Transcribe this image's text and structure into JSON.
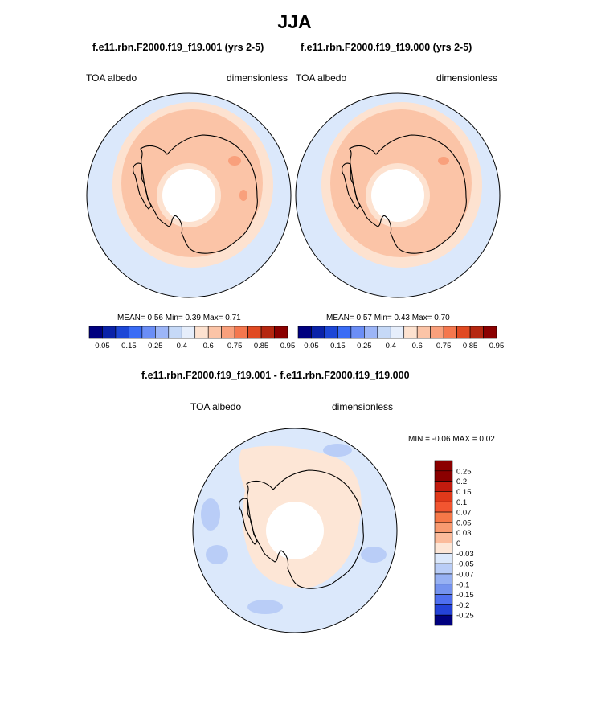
{
  "chart_data": [
    {
      "type": "heatmap",
      "projection": "south polar stereographic",
      "title": "f.e11.rbn.F2000.f19_f19.001 (yrs 2-5)",
      "left_label": "TOA albedo",
      "right_label": "dimensionless",
      "mean_label": "MEAN=",
      "mean": "0.56",
      "min_label": "Min=",
      "min": "0.39",
      "max_label": "Max=",
      "max": "0.71",
      "colorbar_ticks": [
        "0.05",
        "0.15",
        "0.25",
        "0.4",
        "0.6",
        "0.75",
        "0.85",
        "0.95"
      ],
      "colorbar_colors": [
        "#00007f",
        "#0a22a8",
        "#1d47d6",
        "#3a6cf5",
        "#6b8ef6",
        "#9cb5f7",
        "#c6d9f7",
        "#e6eefb",
        "#fde2d0",
        "#fbc4a7",
        "#f9a07c",
        "#f4774e",
        "#e04a22",
        "#b52710",
        "#8b0000"
      ]
    },
    {
      "type": "heatmap",
      "projection": "south polar stereographic",
      "title": "f.e11.rbn.F2000.f19_f19.000 (yrs 2-5)",
      "left_label": "TOA albedo",
      "right_label": "dimensionless",
      "mean_label": "MEAN=",
      "mean": "0.57",
      "min_label": "Min=",
      "min": "0.43",
      "max_label": "Max=",
      "max": "0.70",
      "colorbar_ticks": [
        "0.05",
        "0.15",
        "0.25",
        "0.4",
        "0.6",
        "0.75",
        "0.85",
        "0.95"
      ],
      "colorbar_colors": [
        "#00007f",
        "#0a22a8",
        "#1d47d6",
        "#3a6cf5",
        "#6b8ef6",
        "#9cb5f7",
        "#c6d9f7",
        "#e6eefb",
        "#fde2d0",
        "#fbc4a7",
        "#f9a07c",
        "#f4774e",
        "#e04a22",
        "#b52710",
        "#8b0000"
      ]
    },
    {
      "type": "heatmap",
      "projection": "south polar stereographic",
      "title": "f.e11.rbn.F2000.f19_f19.001 - f.e11.rbn.F2000.f19_f19.000",
      "left_label": "TOA albedo",
      "right_label": "dimensionless",
      "min_label": "MIN =",
      "min": "-0.06",
      "max_label": "MAX =",
      "max": "0.02",
      "colorbar_ticks": [
        "0.25",
        "0.2",
        "0.15",
        "0.1",
        "0.07",
        "0.05",
        "0.03",
        "0",
        "-0.03",
        "-0.05",
        "-0.07",
        "-0.1",
        "-0.15",
        "-0.2",
        "-0.25"
      ],
      "colorbar_colors": [
        "#8b0000",
        "#c21b0e",
        "#e0391a",
        "#f25530",
        "#f67848",
        "#f89a70",
        "#fbbb9b",
        "#fde6d6",
        "#dbe8fb",
        "#b9cdf7",
        "#97b1f3",
        "#7593ef",
        "#4f6ff0",
        "#2442d8",
        "#00007f"
      ]
    }
  ],
  "page": {
    "title": "JJA"
  }
}
